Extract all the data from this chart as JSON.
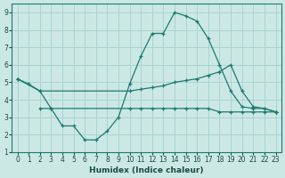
{
  "xlabel": "Humidex (Indice chaleur)",
  "xlim": [
    -0.5,
    23.5
  ],
  "ylim": [
    1,
    9.5
  ],
  "yticks": [
    1,
    2,
    3,
    4,
    5,
    6,
    7,
    8,
    9
  ],
  "xticks": [
    0,
    1,
    2,
    3,
    4,
    5,
    6,
    7,
    8,
    9,
    10,
    11,
    12,
    13,
    14,
    15,
    16,
    17,
    18,
    19,
    20,
    21,
    22,
    23
  ],
  "line_color": "#1a7a6e",
  "bg_color": "#cce8e5",
  "grid_color": "#a8d4d0",
  "series1_x": [
    0,
    1,
    2,
    3,
    4,
    5,
    6,
    7,
    8,
    9,
    10,
    11,
    12,
    13,
    14,
    15,
    16,
    17,
    18,
    19,
    20,
    21,
    22,
    23
  ],
  "series1_y": [
    5.2,
    4.9,
    4.5,
    3.5,
    2.5,
    2.5,
    1.7,
    1.7,
    2.2,
    3.0,
    4.9,
    6.5,
    7.8,
    7.8,
    9.0,
    8.8,
    8.5,
    7.5,
    6.0,
    4.5,
    3.6,
    3.5,
    3.5,
    3.3
  ],
  "series2_x": [
    0,
    2,
    10,
    11,
    12,
    13,
    14,
    15,
    16,
    17,
    18,
    19,
    20,
    21,
    22,
    23
  ],
  "series2_y": [
    5.2,
    4.5,
    4.5,
    4.6,
    4.7,
    4.8,
    5.0,
    5.1,
    5.2,
    5.4,
    5.6,
    6.0,
    4.5,
    3.6,
    3.5,
    3.3
  ],
  "series3_x": [
    2,
    3,
    10,
    11,
    12,
    13,
    14,
    15,
    16,
    17,
    18,
    19,
    20,
    21,
    22,
    23
  ],
  "series3_y": [
    3.5,
    3.5,
    3.5,
    3.5,
    3.5,
    3.5,
    3.5,
    3.5,
    3.5,
    3.5,
    3.3,
    3.3,
    3.3,
    3.3,
    3.3,
    3.3
  ]
}
